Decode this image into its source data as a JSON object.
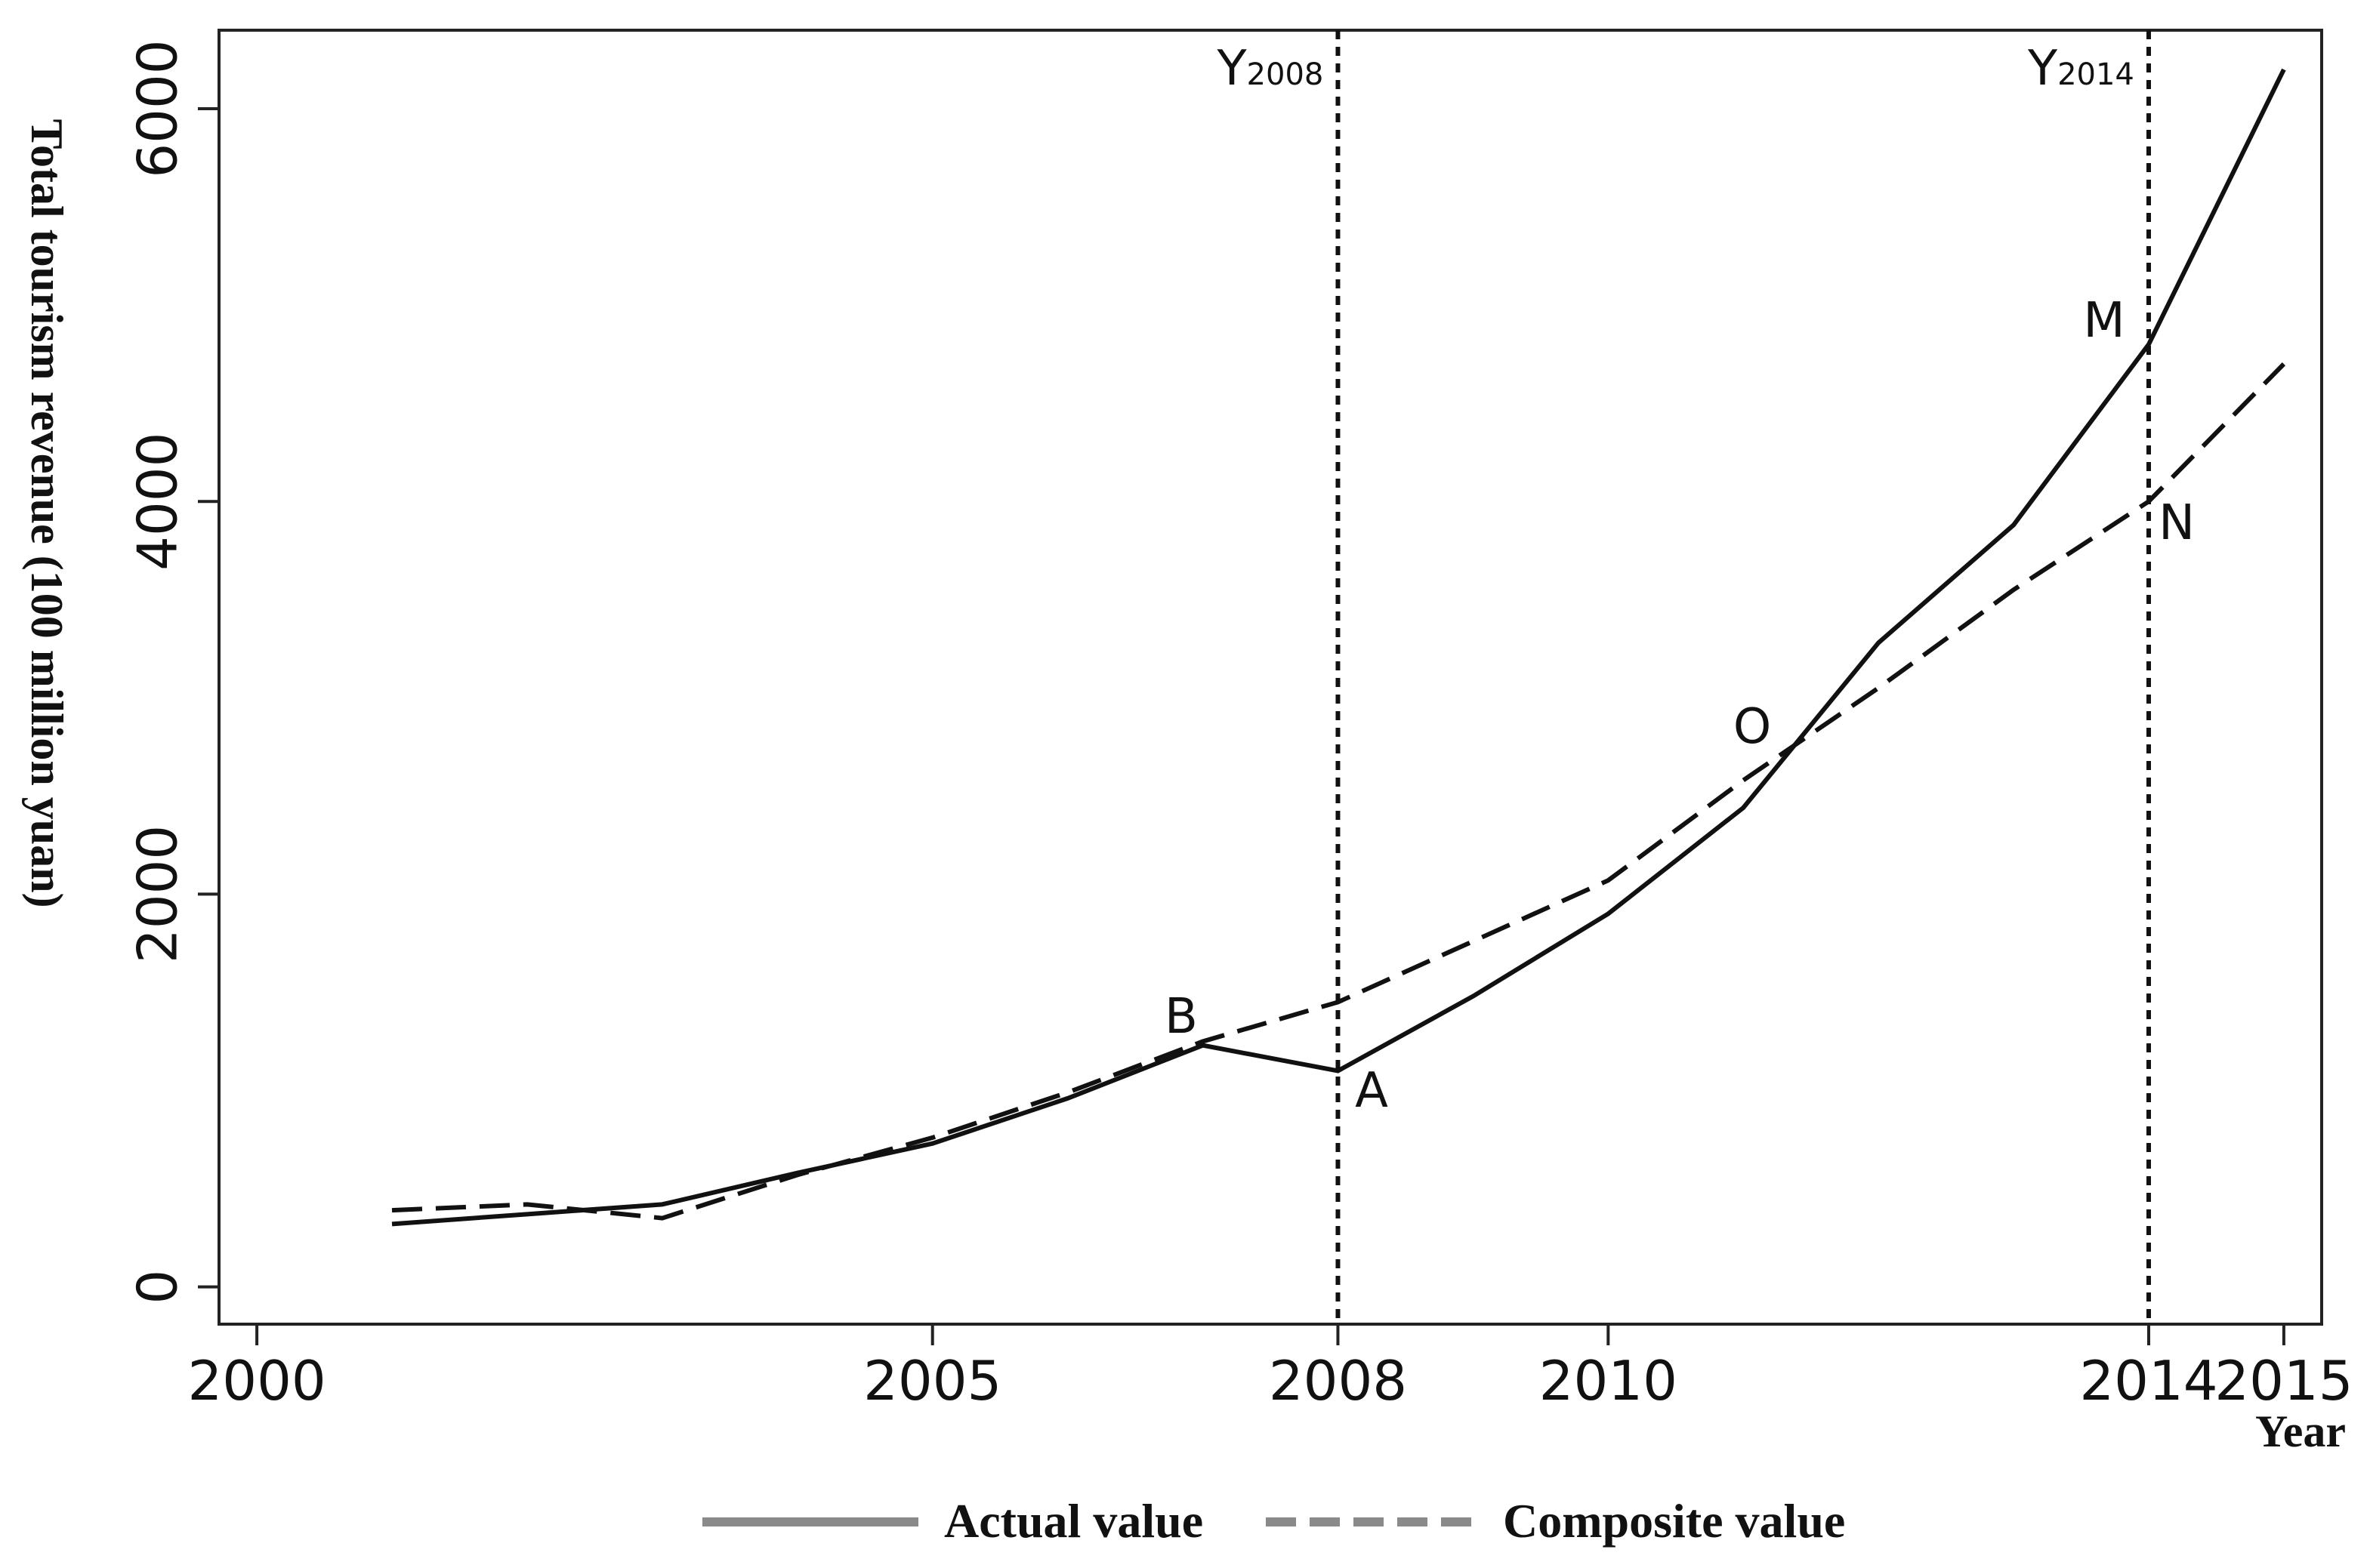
{
  "chart_data": {
    "type": "line",
    "y_label": "Total tourism revenue (100 million yuan)",
    "x_label": "Year",
    "x": [
      2001,
      2002,
      2003,
      2004,
      2005,
      2006,
      2007,
      2008,
      2009,
      2010,
      2011,
      2012,
      2013,
      2014,
      2015
    ],
    "series": [
      {
        "name": "Actual value",
        "color": "#111111",
        "dash": false,
        "values": [
          320,
          370,
          420,
          580,
          730,
          960,
          1230,
          1100,
          1480,
          1900,
          2440,
          3280,
          3880,
          4800,
          6200
        ]
      },
      {
        "name": "Composite value",
        "color": "#111111",
        "dash": true,
        "values": [
          390,
          420,
          350,
          570,
          760,
          990,
          1250,
          1450,
          1760,
          2070,
          2580,
          3050,
          3550,
          4000,
          4700
        ]
      }
    ],
    "xlim": [
      1999.72,
      2015.28
    ],
    "ylim": [
      -190,
      6400
    ],
    "xticks": [
      2000,
      2005,
      2008,
      2010,
      2014,
      2015
    ],
    "yticks": [
      0,
      2000,
      4000,
      6000
    ],
    "reference_lines": [
      {
        "value": 2008,
        "label": "Y",
        "subscript": "2008"
      },
      {
        "value": 2014,
        "label": "Y",
        "subscript": "2014"
      }
    ],
    "annotations": [
      "B",
      "A",
      "O",
      "M",
      "N"
    ]
  }
}
